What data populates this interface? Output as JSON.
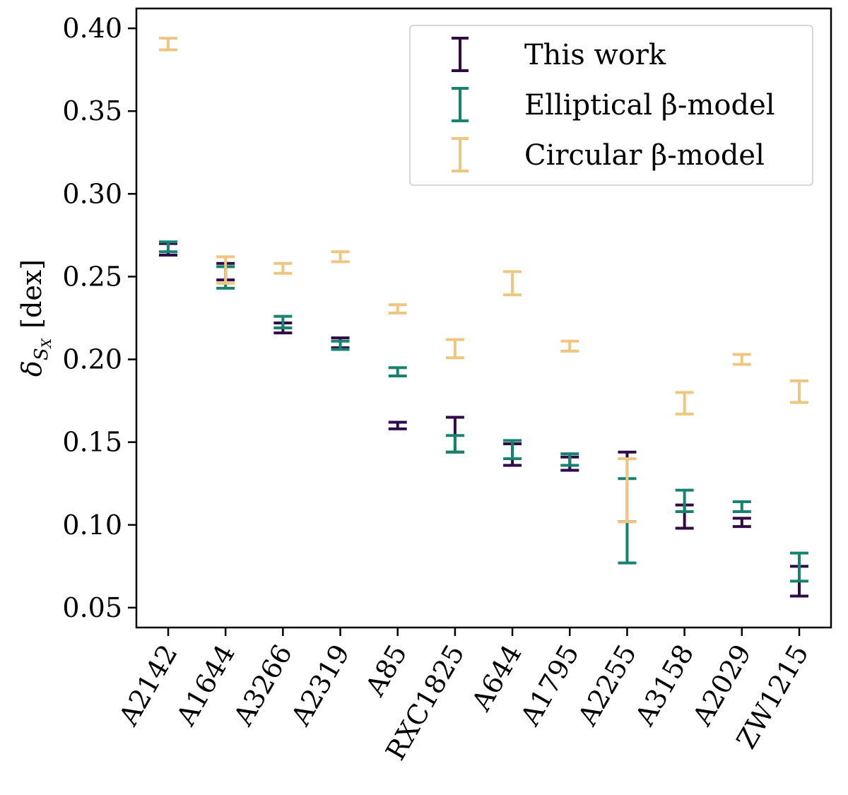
{
  "chart_data": {
    "type": "errorbar",
    "title": "",
    "xlabel": "",
    "ylabel": "δ",
    "ylabel_sub": "S",
    "ylabel_subsub": "X",
    "ylabel_unit": "[dex]",
    "ylim": [
      0.038,
      0.412
    ],
    "yticks": [
      "0.05",
      "0.10",
      "0.15",
      "0.20",
      "0.25",
      "0.30",
      "0.35",
      "0.40"
    ],
    "categories": [
      "A2142",
      "A1644",
      "A3266",
      "A2319",
      "A85",
      "RXC1825",
      "A644",
      "A1795",
      "A2255",
      "A3158",
      "A2029",
      "ZW1215"
    ],
    "legend_position": "top-right",
    "series": [
      {
        "name": "This work",
        "legend_label": "This work",
        "color": "#300a46",
        "low": [
          0.263,
          0.248,
          0.216,
          0.207,
          0.158,
          0.144,
          0.136,
          0.133,
          0.102,
          0.098,
          0.099,
          0.057
        ],
        "high": [
          0.27,
          0.258,
          0.222,
          0.213,
          0.162,
          0.165,
          0.149,
          0.141,
          0.144,
          0.112,
          0.104,
          0.075
        ]
      },
      {
        "name": "Elliptical β-model",
        "legend_label": "Elliptical β-model",
        "color": "#17836f",
        "low": [
          0.265,
          0.243,
          0.219,
          0.206,
          0.19,
          0.144,
          0.14,
          0.136,
          0.077,
          0.108,
          0.108,
          0.066
        ],
        "high": [
          0.271,
          0.256,
          0.226,
          0.211,
          0.195,
          0.154,
          0.151,
          0.143,
          0.128,
          0.121,
          0.114,
          0.083
        ]
      },
      {
        "name": "Circular β-model",
        "legend_label": "Circular β-model",
        "color": "#efc67f",
        "low": [
          0.387,
          0.246,
          0.252,
          0.259,
          0.228,
          0.201,
          0.239,
          0.205,
          0.102,
          0.167,
          0.197,
          0.174
        ],
        "high": [
          0.394,
          0.262,
          0.258,
          0.265,
          0.233,
          0.212,
          0.253,
          0.211,
          0.14,
          0.18,
          0.203,
          0.187
        ]
      }
    ]
  }
}
